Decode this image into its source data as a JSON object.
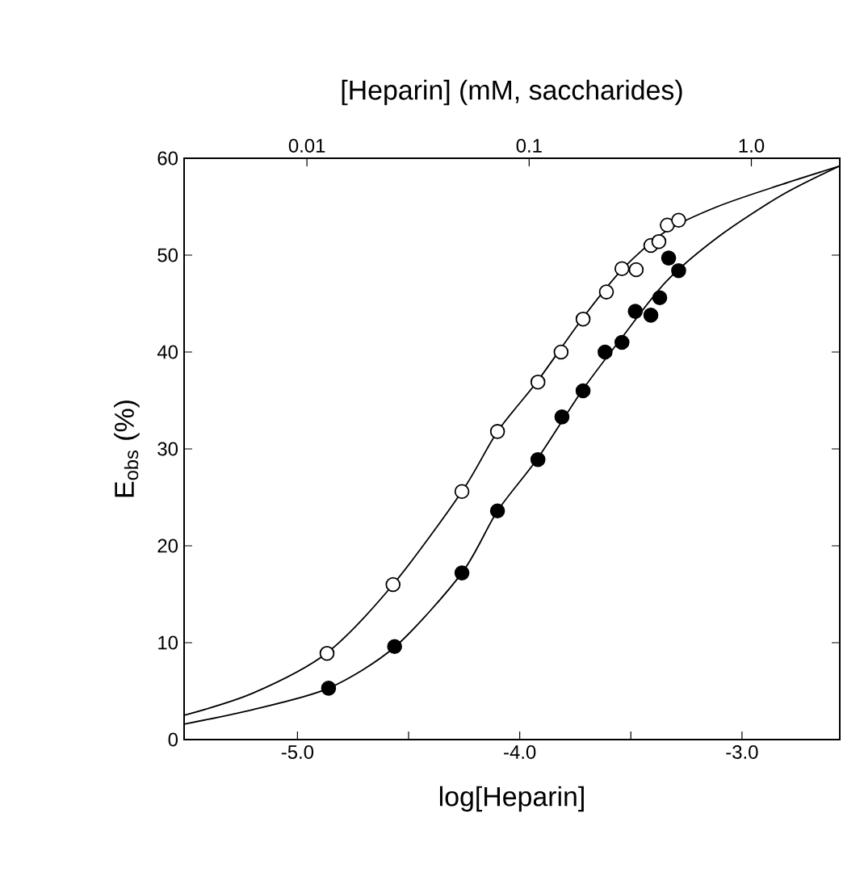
{
  "chart_data": {
    "type": "scatter",
    "xlabel": "log[Heparin]",
    "ylabel": "E$_{obs}$ (%)",
    "x2label": "[Heparin] (mM, saccharides)",
    "xlim": [
      -5.51,
      -2.56
    ],
    "xticks": [
      {
        "value": -5.0,
        "label": "-5.0"
      },
      {
        "value": -4.5,
        "label": null
      },
      {
        "value": -4.0,
        "label": "-4.0"
      },
      {
        "value": -3.5,
        "label": null
      },
      {
        "value": -3.0,
        "label": "-3.0"
      }
    ],
    "x2lim": [
      0.0028,
      2.5
    ],
    "x2ticks": [
      0.01,
      0.1,
      {
        "value": 1,
        "label": "1.0"
      }
    ],
    "log": "x2",
    "ylim": [
      0,
      60
    ],
    "yticks": [
      0,
      10,
      20,
      30,
      40,
      50,
      60
    ],
    "grid": false,
    "series": [
      {
        "marker": "circle",
        "color": "#ffffff",
        "x": [
          -4.867,
          -4.57,
          -4.26,
          -4.1,
          -3.918,
          -3.814,
          -3.715,
          -3.61,
          -3.54,
          -3.476,
          -3.41,
          -3.374,
          -3.336,
          -3.285
        ],
        "values": [
          8.9,
          16.0,
          25.6,
          31.8,
          36.9,
          40.0,
          43.4,
          46.2,
          48.6,
          48.5,
          51.0,
          51.4,
          53.1,
          53.6
        ]
      },
      {
        "marker": "circle",
        "color": "#000000",
        "x": [
          -4.86,
          -4.563,
          -4.26,
          -4.1,
          -3.918,
          -3.81,
          -3.715,
          -3.616,
          -3.54,
          -3.48,
          -3.41,
          -3.37,
          -3.33,
          -3.285
        ],
        "values": [
          5.3,
          9.6,
          17.2,
          23.6,
          28.9,
          33.3,
          36.0,
          40.0,
          41.0,
          44.2,
          43.8,
          45.6,
          49.7,
          48.4
        ]
      },
      {
        "type": "line",
        "marker": "none",
        "color": "#000000",
        "x": [
          -5.51,
          -5.2,
          -4.87,
          -4.57,
          -4.26,
          -4.1,
          -3.92,
          -3.72,
          -3.54,
          -3.34,
          -3.1,
          -2.82,
          -2.56
        ],
        "values": [
          2.5,
          4.8,
          8.9,
          16.0,
          25.6,
          31.8,
          37.0,
          43.4,
          48.5,
          52.5,
          55.1,
          57.3,
          59.2
        ]
      },
      {
        "type": "line",
        "marker": "none",
        "color": "#000000",
        "x": [
          -5.51,
          -5.2,
          -4.86,
          -4.56,
          -4.26,
          -4.1,
          -3.92,
          -3.72,
          -3.54,
          -3.34,
          -3.1,
          -2.82,
          -2.56
        ],
        "values": [
          1.6,
          3.1,
          5.3,
          9.6,
          17.2,
          23.6,
          29.0,
          36.0,
          41.5,
          47.3,
          52.0,
          56.2,
          59.2
        ]
      }
    ]
  }
}
